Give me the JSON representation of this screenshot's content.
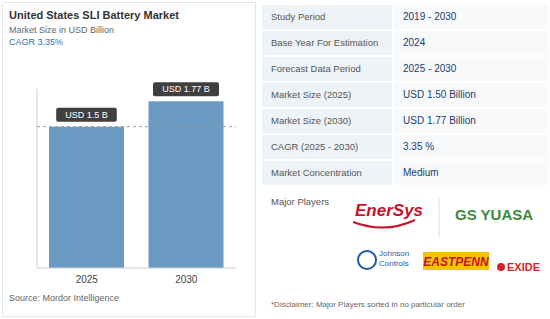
{
  "chart_data": {
    "type": "bar",
    "title": "United States SLI Battery Market",
    "subtitle": "Market Size in USD Billion",
    "annotations": [
      "CAGR 3.35%"
    ],
    "categories": [
      "2025",
      "2030"
    ],
    "values": [
      1.5,
      1.77
    ],
    "value_labels": [
      "USD 1.5 B",
      "USD 1.77 B"
    ],
    "data_labels": true,
    "color": "#6b9bc3",
    "ylim": [
      0,
      1.9
    ],
    "tick_labels": "x"
  },
  "source": "Source: Mordor Intelligence",
  "table": {
    "rows": [
      [
        "Study Period",
        "2019 - 2030"
      ],
      [
        "Base Year For Estimation",
        "2024"
      ],
      [
        "Forecast Data Period",
        "2025 - 2030"
      ],
      [
        "Market Size (2025)",
        "USD 1.50 Billion"
      ],
      [
        "Market Size (2030)",
        "USD 1.77 Billion"
      ],
      [
        "CAGR (2025 - 2030)",
        "3.35 %"
      ],
      [
        "Market Concentration",
        "Medium"
      ]
    ]
  },
  "major_players": {
    "label": "Major Players",
    "players": [
      "EnerSys",
      "GS YUASA",
      "Johnson Controls",
      "EASTPENN",
      "EXIDE"
    ]
  },
  "disclaimer": "*Disclaimer: Major Players sorted in no particular order"
}
